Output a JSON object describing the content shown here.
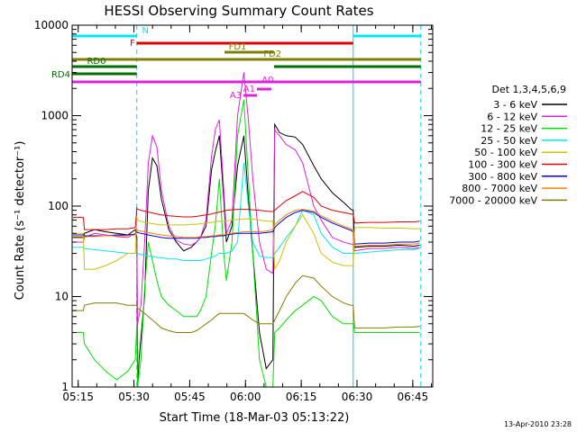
{
  "chart_data": {
    "type": "line",
    "title": "HESSI Observing Summary Count Rates",
    "xlabel": "Start Time (18-Mar-03 05:13:22)",
    "ylabel": "Count Rate (s⁻¹ detector⁻¹)",
    "x_unit": "minutes after 05:13:22",
    "xlim": [
      0,
      97
    ],
    "ylim": [
      1,
      10000
    ],
    "y_scale": "log",
    "x_ticks": [
      {
        "v": 1.63,
        "label": "05:15"
      },
      {
        "v": 16.63,
        "label": "05:30"
      },
      {
        "v": 31.63,
        "label": "05:45"
      },
      {
        "v": 46.63,
        "label": "06:00"
      },
      {
        "v": 61.63,
        "label": "06:15"
      },
      {
        "v": 76.63,
        "label": "06:30"
      },
      {
        "v": 91.63,
        "label": "06:45"
      }
    ],
    "y_ticks": [
      {
        "v": 1,
        "label": "1"
      },
      {
        "v": 10,
        "label": "10"
      },
      {
        "v": 100,
        "label": "100"
      },
      {
        "v": 1000,
        "label": "1000"
      },
      {
        "v": 10000,
        "label": "10000"
      }
    ],
    "legend_title": "Det 1,3,4,5,6,9",
    "legend_position": "right",
    "footer": "13-Apr-2010 23:28",
    "vlines": [
      {
        "x": 17.4,
        "color": "#00d8e0",
        "dashed": true
      },
      {
        "x": 75.6,
        "color": "#00d8e0",
        "dashed": false
      },
      {
        "x": 93.8,
        "color": "#00d8e0",
        "dashed": true
      }
    ],
    "flag_bars": [
      {
        "name": "N",
        "color": "#00e8f0",
        "y": 40,
        "label_pos": "top",
        "segments": [
          [
            0,
            17.4
          ],
          [
            75.6,
            93.8
          ]
        ]
      },
      {
        "name": "F",
        "color": "#e00000",
        "y": 48,
        "label_pos": "left",
        "segments": [
          [
            17.4,
            75.6
          ]
        ]
      },
      {
        "name": "FD1",
        "color": "#808000",
        "y": 58,
        "label_pos": "top",
        "segments": [
          [
            41,
            54.3
          ]
        ]
      },
      {
        "name": "FD2",
        "color": "#808000",
        "y": 66,
        "label_pos": "top",
        "segments": [
          [
            0,
            93.8
          ]
        ]
      },
      {
        "name": "RD0",
        "color": "#007000",
        "y": 74,
        "label_pos": "top",
        "segments": [
          [
            0,
            17.4
          ],
          [
            54.3,
            75.6
          ],
          [
            75.6,
            93.8
          ]
        ]
      },
      {
        "name": "RD4",
        "color": "#007000",
        "y": 82,
        "label_pos": "left",
        "segments": [
          [
            0,
            17.4
          ]
        ]
      },
      {
        "name": "A0",
        "color": "#e020e0",
        "y": 91,
        "label_pos": "right",
        "segments": [
          [
            0,
            93.8
          ]
        ]
      },
      {
        "name": "A1",
        "color": "#e020e0",
        "y": 99,
        "label_pos": "left",
        "segments": [
          [
            49.7,
            53.6
          ]
        ]
      },
      {
        "name": "A3",
        "color": "#e020e0",
        "y": 106,
        "label_pos": "left",
        "segments": [
          [
            46.1,
            49.7
          ]
        ]
      }
    ],
    "series": [
      {
        "name": "3 - 6 keV",
        "color": "#000000",
        "x": [
          0.2,
          3,
          3.3,
          6,
          9,
          12,
          15,
          17,
          17.4,
          17.6,
          18,
          19.5,
          20.5,
          21.6,
          22.8,
          24,
          26,
          28,
          30,
          32,
          33.5,
          34.5,
          36,
          37.5,
          38.5,
          39.6,
          40.8,
          41.5,
          43,
          44.5,
          46.2,
          47.4,
          48.6,
          50.4,
          52.2,
          54,
          54.5,
          55.8,
          57.6,
          60,
          62,
          65,
          67,
          70,
          73,
          75,
          75.6,
          76,
          80,
          84,
          88,
          92,
          93.5
        ],
        "y": [
          45,
          45,
          50,
          55,
          52,
          50,
          48,
          55,
          45,
          1,
          2,
          10,
          150,
          340,
          280,
          120,
          55,
          40,
          32,
          35,
          40,
          45,
          60,
          250,
          400,
          600,
          120,
          40,
          60,
          280,
          600,
          120,
          30,
          4,
          1.6,
          2,
          800,
          650,
          600,
          580,
          480,
          280,
          200,
          140,
          110,
          92,
          90,
          35,
          36,
          36,
          37,
          36,
          37
        ]
      },
      {
        "name": "6 - 12 keV",
        "color": "#e020e0",
        "x": [
          0.2,
          3,
          3.3,
          6,
          9,
          12,
          15,
          17,
          17.4,
          17.6,
          18.5,
          19.5,
          20.5,
          21.6,
          22.8,
          24,
          26,
          28,
          30,
          32,
          33.5,
          34.5,
          36,
          37.5,
          38.5,
          39.6,
          40.8,
          41.5,
          43,
          44.5,
          46.2,
          47.4,
          48.6,
          50.4,
          52.2,
          54,
          54.5,
          55.8,
          57.6,
          60,
          62,
          65,
          67,
          70,
          73,
          75,
          75.6,
          76,
          80,
          84,
          88,
          92,
          93.5
        ],
        "y": [
          40,
          40,
          45,
          50,
          48,
          46,
          45,
          50,
          40,
          5,
          8,
          40,
          300,
          600,
          450,
          150,
          60,
          42,
          38,
          37,
          40,
          45,
          70,
          350,
          700,
          900,
          150,
          50,
          70,
          1000,
          3000,
          900,
          200,
          40,
          20,
          18,
          700,
          600,
          480,
          420,
          300,
          100,
          70,
          45,
          40,
          38,
          38,
          32,
          34,
          34,
          35,
          34,
          35
        ]
      },
      {
        "name": "12 - 25 keV",
        "color": "#00e000",
        "x": [
          0.2,
          3,
          3.3,
          6,
          9,
          12,
          15,
          17,
          17.4,
          17.6,
          18.5,
          19.5,
          20.5,
          21.6,
          22.8,
          24,
          26,
          28,
          30,
          32,
          33.5,
          34.5,
          36,
          37.5,
          38.5,
          39.6,
          40.8,
          41.5,
          43,
          44.5,
          46.2,
          47.4,
          48.6,
          50.4,
          52.2,
          54,
          54.5,
          55.8,
          57.6,
          60,
          62,
          65,
          67,
          70,
          73,
          75,
          75.6,
          76,
          80,
          84,
          88,
          92,
          93.5
        ],
        "y": [
          4,
          4,
          3,
          2,
          1.5,
          1.2,
          1.5,
          2,
          5,
          1,
          2,
          12,
          40,
          25,
          15,
          10,
          8,
          7,
          6,
          6,
          6,
          7,
          10,
          30,
          60,
          200,
          30,
          15,
          40,
          600,
          1500,
          200,
          30,
          2,
          1,
          1,
          4,
          4.5,
          5.5,
          7,
          8,
          10,
          9,
          6,
          5,
          5,
          5,
          4,
          4,
          4,
          4,
          4,
          4
        ]
      },
      {
        "name": "25 - 50 keV",
        "color": "#00e8f0",
        "x": [
          0.2,
          3,
          3.3,
          6,
          9,
          12,
          15,
          17,
          17.4,
          17.6,
          18.5,
          19.5,
          20.5,
          21.6,
          22.8,
          24,
          26,
          28,
          30,
          32,
          33.5,
          34.5,
          36,
          37.5,
          38.5,
          39.6,
          40.8,
          41.5,
          43,
          44.5,
          46.2,
          47.4,
          48.6,
          50.4,
          52.2,
          54,
          54.5,
          55.8,
          57.6,
          60,
          62,
          65,
          67,
          70,
          73,
          75,
          75.6,
          76,
          80,
          84,
          88,
          92,
          93.5
        ],
        "y": [
          35,
          35,
          34,
          33,
          32,
          31,
          30,
          30,
          30,
          30,
          29,
          29,
          28,
          28,
          27,
          27,
          26,
          26,
          25,
          25,
          25,
          25,
          26,
          27,
          28,
          30,
          30,
          30,
          32,
          40,
          300,
          100,
          40,
          28,
          27,
          27,
          30,
          35,
          45,
          60,
          90,
          80,
          50,
          35,
          30,
          30,
          30,
          30,
          31,
          32,
          33,
          33,
          34
        ]
      },
      {
        "name": "50 - 100 keV",
        "color": "#d0c000",
        "x": [
          0.2,
          3,
          3.3,
          6,
          9,
          12,
          15,
          17,
          17.4,
          17.6,
          18.5,
          19.5,
          20.5,
          21.6,
          22.8,
          24,
          26,
          28,
          30,
          32,
          33.5,
          34.5,
          36,
          37.5,
          38.5,
          39.6,
          40.8,
          41.5,
          43,
          44.5,
          46.2,
          47.4,
          48.6,
          50.4,
          52.2,
          54,
          54.5,
          55.8,
          57.6,
          60,
          62,
          65,
          67,
          70,
          73,
          75,
          75.6,
          76,
          80,
          84,
          88,
          92,
          93.5
        ],
        "y": [
          50,
          50,
          20,
          20,
          22,
          25,
          30,
          30,
          75,
          70,
          68,
          66,
          65,
          64,
          63,
          62,
          62,
          62,
          62,
          63,
          63,
          64,
          65,
          66,
          67,
          68,
          68,
          69,
          70,
          71,
          72,
          72,
          72,
          70,
          68,
          68,
          20,
          25,
          40,
          60,
          80,
          50,
          30,
          24,
          22,
          22,
          22,
          58,
          58,
          57,
          57,
          56,
          56
        ]
      },
      {
        "name": "100 - 300 keV",
        "color": "#e00000",
        "x": [
          0.2,
          3,
          3.3,
          6,
          9,
          12,
          15,
          17,
          17.4,
          17.6,
          18.5,
          19.5,
          20.5,
          21.6,
          22.8,
          24,
          26,
          28,
          30,
          32,
          33.5,
          34.5,
          36,
          37.5,
          38.5,
          39.6,
          40.8,
          41.5,
          43,
          44.5,
          46.2,
          47.4,
          48.6,
          50.4,
          52.2,
          54,
          54.5,
          55.8,
          57.6,
          60,
          62,
          65,
          67,
          70,
          73,
          75,
          75.6,
          76,
          80,
          84,
          88,
          92,
          93.5
        ],
        "y": [
          75,
          75,
          55,
          55,
          55,
          56,
          56,
          58,
          95,
          92,
          90,
          88,
          86,
          84,
          82,
          80,
          78,
          77,
          76,
          76,
          77,
          78,
          80,
          82,
          84,
          86,
          88,
          90,
          91,
          92,
          92,
          92,
          91,
          90,
          88,
          87,
          90,
          100,
          115,
          130,
          145,
          125,
          100,
          90,
          85,
          82,
          80,
          65,
          66,
          66,
          67,
          67,
          68
        ]
      },
      {
        "name": "300 - 800 keV",
        "color": "#0000e0",
        "x": [
          0.2,
          3,
          3.3,
          6,
          9,
          12,
          15,
          17,
          17.4,
          17.6,
          18.5,
          19.5,
          20.5,
          21.6,
          22.8,
          24,
          26,
          28,
          30,
          32,
          33.5,
          34.5,
          36,
          37.5,
          38.5,
          39.6,
          40.8,
          41.5,
          43,
          44.5,
          46.2,
          47.4,
          48.6,
          50.4,
          52.2,
          54,
          54.5,
          55.8,
          57.6,
          60,
          62,
          65,
          67,
          70,
          73,
          75,
          75.6,
          76,
          80,
          84,
          88,
          92,
          93.5
        ],
        "y": [
          48,
          48,
          47,
          47,
          47,
          48,
          48,
          49,
          52,
          51,
          50,
          49,
          48,
          47,
          46,
          45,
          44,
          44,
          44,
          44,
          44,
          45,
          45,
          46,
          46,
          47,
          47,
          48,
          49,
          50,
          50,
          50,
          50,
          50,
          51,
          52,
          58,
          65,
          75,
          85,
          90,
          85,
          75,
          65,
          58,
          54,
          52,
          38,
          39,
          39,
          40,
          40,
          41
        ]
      },
      {
        "name": "800 - 7000 keV",
        "color": "#ff8000",
        "x": [
          0.2,
          3,
          3.3,
          6,
          9,
          12,
          15,
          17,
          17.4,
          17.6,
          18.5,
          19.5,
          20.5,
          21.6,
          22.8,
          24,
          26,
          28,
          30,
          32,
          33.5,
          34.5,
          36,
          37.5,
          38.5,
          39.6,
          40.8,
          41.5,
          43,
          44.5,
          46.2,
          47.4,
          48.6,
          50.4,
          52.2,
          54,
          54.5,
          55.8,
          57.6,
          60,
          62,
          65,
          67,
          70,
          73,
          75,
          75.6,
          76,
          80,
          84,
          88,
          92,
          93.5
        ],
        "y": [
          46,
          46,
          46,
          46,
          47,
          47,
          47,
          48,
          55,
          54,
          53,
          52,
          51,
          50,
          49,
          48,
          47,
          46,
          45,
          45,
          45,
          46,
          46,
          47,
          47,
          48,
          48,
          49,
          50,
          51,
          52,
          52,
          52,
          52,
          53,
          55,
          62,
          70,
          80,
          90,
          92,
          88,
          78,
          68,
          60,
          56,
          54,
          36,
          37,
          37,
          38,
          38,
          39
        ]
      },
      {
        "name": "7000 - 20000 keV",
        "color": "#808000",
        "x": [
          0.2,
          3,
          3.3,
          6,
          9,
          12,
          15,
          17,
          17.4,
          17.6,
          18.5,
          19.5,
          20.5,
          21.6,
          22.8,
          24,
          26,
          28,
          30,
          32,
          33.5,
          34.5,
          36,
          37.5,
          38.5,
          39.6,
          40.8,
          41.5,
          43,
          44.5,
          46.2,
          47.4,
          48.6,
          50.4,
          52.2,
          54,
          54.5,
          55.8,
          57.6,
          60,
          62,
          65,
          67,
          70,
          73,
          75,
          75.6,
          76,
          80,
          84,
          88,
          92,
          93.5
        ],
        "y": [
          7,
          7,
          8,
          8.5,
          8.5,
          8.5,
          8,
          8,
          8,
          7.5,
          7,
          6.5,
          6,
          5.5,
          5,
          4.5,
          4.2,
          4,
          4,
          4,
          4.2,
          4.5,
          5,
          5.5,
          6,
          6.5,
          6.5,
          6.5,
          6.5,
          6.5,
          6.5,
          6,
          5.5,
          5,
          5,
          5,
          5.5,
          7,
          10,
          14,
          17,
          16,
          13,
          10,
          8.5,
          8,
          8,
          4.5,
          4.5,
          4.5,
          4.6,
          4.6,
          4.7
        ]
      }
    ]
  }
}
